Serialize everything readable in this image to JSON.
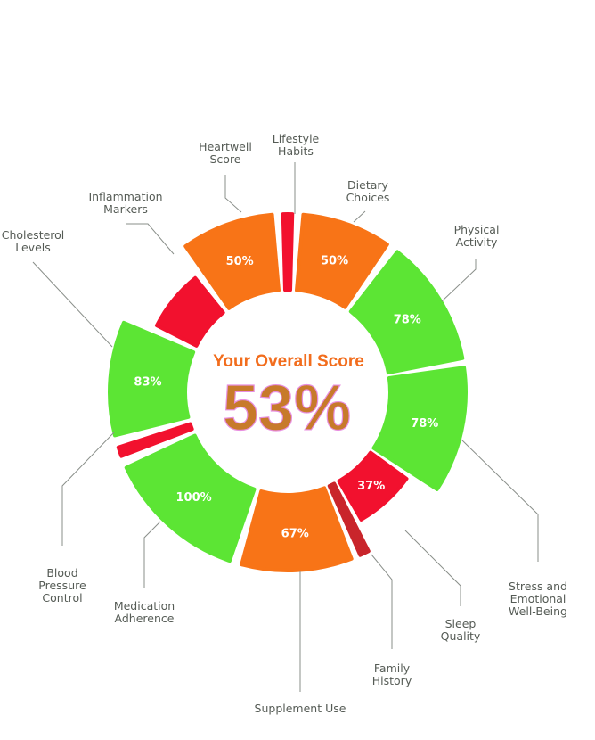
{
  "colors": {
    "green": "#5ce534",
    "orange": "#f87417",
    "red": "#f2112e",
    "dark_red": "#c9252b"
  },
  "center": {
    "title": "Your Overall Score",
    "value": "53%"
  },
  "chart_data": {
    "type": "donut",
    "overall_score_percent": 53,
    "categories": [
      "Lifestyle Habits",
      "Dietary Choices",
      "Physical Activity",
      "Stress and Emotional Well-Being",
      "Sleep Quality",
      "Family History",
      "Supplement Use",
      "Medication Adherence",
      "Blood Pressure Control",
      "Cholesterol Levels",
      "Inflammation Markers",
      "Heartwell Score"
    ],
    "segments": [
      {
        "category": "Lifestyle Habits",
        "label_lines": [
          "Lifestyle",
          "Habits"
        ],
        "value": null,
        "value_label": "",
        "color": "red"
      },
      {
        "category": "Dietary Choices",
        "label_lines": [
          "Dietary",
          "Choices"
        ],
        "value": 50,
        "value_label": "50%",
        "color": "orange"
      },
      {
        "category": "Physical Activity",
        "label_lines": [
          "Physical",
          "Activity"
        ],
        "value": 78,
        "value_label": "78%",
        "color": "green"
      },
      {
        "category": "Stress and Emotional Well-Being",
        "label_lines": [
          "Stress and",
          "Emotional",
          "Well-Being"
        ],
        "value": 78,
        "value_label": "78%",
        "color": "green"
      },
      {
        "category": "Sleep Quality",
        "label_lines": [
          "Sleep",
          "Quality"
        ],
        "value": 37,
        "value_label": "37%",
        "color": "red"
      },
      {
        "category": "Family History",
        "label_lines": [
          "Family",
          "History"
        ],
        "value": null,
        "value_label": "",
        "color": "dark_red"
      },
      {
        "category": "Supplement Use",
        "label_lines": [
          "Supplement Use"
        ],
        "value": 67,
        "value_label": "67%",
        "color": "orange"
      },
      {
        "category": "Medication Adherence",
        "label_lines": [
          "Medication",
          "Adherence"
        ],
        "value": 100,
        "value_label": "100%",
        "color": "green"
      },
      {
        "category": "Blood Pressure Control",
        "label_lines": [
          "Blood",
          "Pressure",
          "Control"
        ],
        "value": null,
        "value_label": "",
        "color": "red"
      },
      {
        "category": "Cholesterol Levels",
        "label_lines": [
          "Cholesterol",
          "Levels"
        ],
        "value": 83,
        "value_label": "83%",
        "color": "green"
      },
      {
        "category": "Inflammation Markers",
        "label_lines": [
          "Inflammation",
          "Markers"
        ],
        "value": null,
        "value_label": "",
        "color": "red"
      },
      {
        "category": "Heartwell Score",
        "label_lines": [
          "Heartwell",
          "Score"
        ],
        "value": 50,
        "value_label": "50%",
        "color": "orange"
      }
    ]
  }
}
